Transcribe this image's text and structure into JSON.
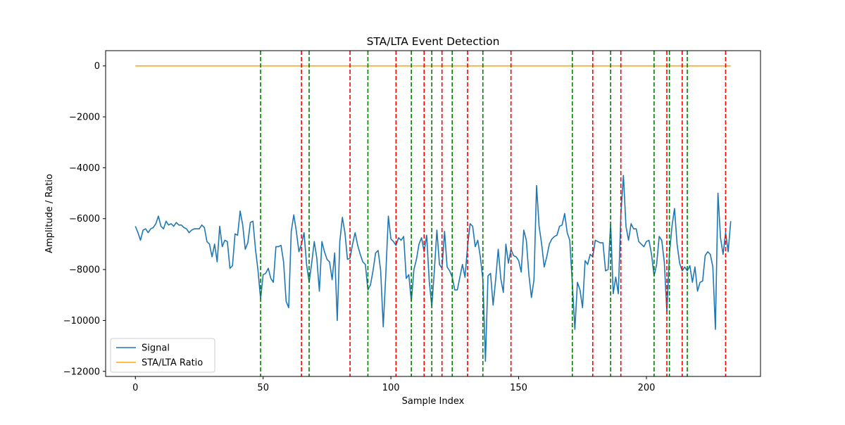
{
  "chart_data": {
    "type": "line",
    "title": "STA/LTA Event Detection",
    "xlabel": "Sample Index",
    "ylabel": "Amplitude / Ratio",
    "xlim": [
      -11.65,
      244.65
    ],
    "ylim": [
      -12200,
      600
    ],
    "xticks": [
      0,
      50,
      100,
      150,
      200
    ],
    "yticks": [
      -12000,
      -10000,
      -8000,
      -6000,
      -4000,
      -2000,
      0
    ],
    "ytick_labels": [
      "−12000",
      "−10000",
      "−8000",
      "−6000",
      "−4000",
      "−2000",
      "0"
    ],
    "grid": false,
    "legend_position": "lower-left",
    "series": [
      {
        "name": "Signal",
        "color": "#1f77b4",
        "x_start": 0,
        "values": [
          -6300,
          -6550,
          -6850,
          -6450,
          -6400,
          -6550,
          -6400,
          -6350,
          -6200,
          -5900,
          -6300,
          -6400,
          -6100,
          -6250,
          -6200,
          -6300,
          -6150,
          -6250,
          -6250,
          -6350,
          -6400,
          -6550,
          -6450,
          -6400,
          -6400,
          -6400,
          -6250,
          -6350,
          -6900,
          -7000,
          -7500,
          -7000,
          -7700,
          -6300,
          -7100,
          -6850,
          -6900,
          -7950,
          -7850,
          -6600,
          -6650,
          -5700,
          -6250,
          -7200,
          -6950,
          -6150,
          -6100,
          -7200,
          -8050,
          -9150,
          -8200,
          -8150,
          -7950,
          -8350,
          -8500,
          -7100,
          -7100,
          -7050,
          -7700,
          -9250,
          -9500,
          -6500,
          -5850,
          -6500,
          -7300,
          -7000,
          -6550,
          -7800,
          -8500,
          -7750,
          -6900,
          -7550,
          -8850,
          -6900,
          -7300,
          -7600,
          -7700,
          -8400,
          -7350,
          -10000,
          -6900,
          -5950,
          -6550,
          -7600,
          -7550,
          -7000,
          -6550,
          -7050,
          -7400,
          -7700,
          -7800,
          -8800,
          -8600,
          -8050,
          -7350,
          -7250,
          -8050,
          -10250,
          -8200,
          -5900,
          -6800,
          -6900,
          -7050,
          -6750,
          -6850,
          -6700,
          -8350,
          -8200,
          -9250,
          -8000,
          -7600,
          -7000,
          -6750,
          -7300,
          -6650,
          -8450,
          -9450,
          -8050,
          -6450,
          -7800,
          -7950,
          -6500,
          -7900,
          -8050,
          -8300,
          -8800,
          -8800,
          -8300,
          -7800,
          -8300,
          -7100,
          -6200,
          -6300,
          -7100,
          -6850,
          -7500,
          -8400,
          -11600,
          -8250,
          -8150,
          -9400,
          -8400,
          -7200,
          -8350,
          -8900,
          -7000,
          -7750,
          -7200,
          -7450,
          -7500,
          -7650,
          -8100,
          -6450,
          -6850,
          -8200,
          -9100,
          -8400,
          -4700,
          -6300,
          -7000,
          -7900,
          -7500,
          -7000,
          -6800,
          -6700,
          -6650,
          -6300,
          -6250,
          -5800,
          -6550,
          -6850,
          -8550,
          -10350,
          -8500,
          -8800,
          -9500,
          -7650,
          -7800,
          -7400,
          -7500,
          -6850,
          -6900,
          -6950,
          -6950,
          -8050,
          -8000,
          -6200,
          -8950,
          -8300,
          -8950,
          -5850,
          -4300,
          -6300,
          -6850,
          -6200,
          -6400,
          -6400,
          -6900,
          -7000,
          -7100,
          -6900,
          -6850,
          -7400,
          -8250,
          -7800,
          -6700,
          -6850,
          -7700,
          -9650,
          -7400,
          -6300,
          -5600,
          -7000,
          -7750,
          -8050,
          -7900,
          -8050,
          -7850,
          -8500,
          -7900,
          -8850,
          -8500,
          -8450,
          -7450,
          -7300,
          -7400,
          -7900,
          -10350,
          -5000,
          -6750,
          -7400,
          -6550,
          -7300,
          -6100
        ]
      },
      {
        "name": "STA/LTA Ratio",
        "color": "#ffa500",
        "x": [
          0,
          233
        ],
        "values": [
          0,
          0
        ]
      }
    ],
    "event_lines": {
      "trigger_on": {
        "color": "#008000",
        "x": [
          49,
          68,
          91,
          108,
          116,
          124,
          136,
          171,
          186,
          203,
          209,
          216
        ]
      },
      "trigger_off": {
        "color": "#ff0000",
        "x": [
          65,
          84,
          102,
          113,
          120,
          130,
          147,
          179,
          190,
          208,
          214,
          231
        ]
      }
    }
  }
}
